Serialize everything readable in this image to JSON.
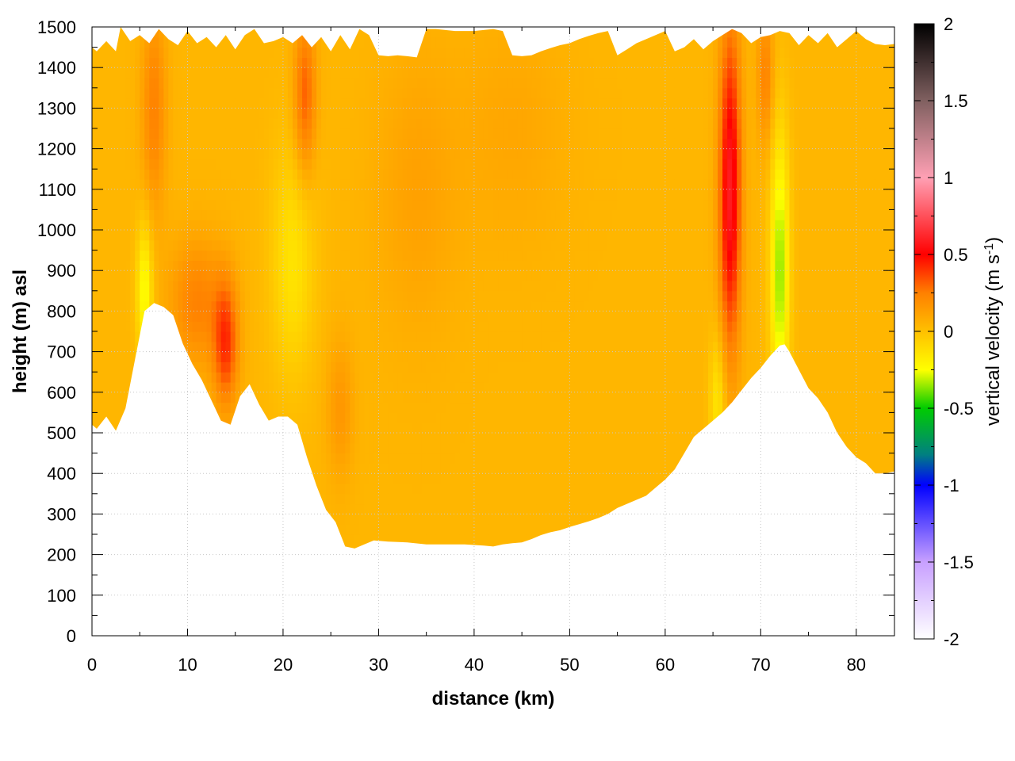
{
  "chart_data": {
    "type": "heatmap",
    "title": "",
    "xlabel": "distance (km)",
    "ylabel": "height (m) asl",
    "xlim": [
      0,
      84
    ],
    "ylim": [
      0,
      1500
    ],
    "x_ticks": [
      0,
      10,
      20,
      30,
      40,
      50,
      60,
      70,
      80
    ],
    "y_ticks": [
      0,
      100,
      200,
      300,
      400,
      500,
      600,
      700,
      800,
      900,
      1000,
      1100,
      1200,
      1300,
      1400,
      1500
    ],
    "grid": true,
    "colorbar": {
      "label_main": "vertical velocity (m s",
      "label_sup": "-1",
      "label_end": ")",
      "range": [
        -2,
        2
      ],
      "ticks": [
        "2",
        "1.5",
        "1",
        "0.5",
        "0",
        "-0.5",
        "-1",
        "-1.5",
        "-2"
      ],
      "stops": [
        {
          "value": -2.0,
          "color": "#ffffff"
        },
        {
          "value": -1.5,
          "color": "#c8a0ff"
        },
        {
          "value": -1.0,
          "color": "#0000ff"
        },
        {
          "value": -0.8,
          "color": "#008080"
        },
        {
          "value": -0.5,
          "color": "#00cc00"
        },
        {
          "value": -0.25,
          "color": "#ffff00"
        },
        {
          "value": 0.0,
          "color": "#ffc000"
        },
        {
          "value": 0.25,
          "color": "#ff8000"
        },
        {
          "value": 0.5,
          "color": "#ff0000"
        },
        {
          "value": 1.0,
          "color": "#ffa0b4"
        },
        {
          "value": 1.5,
          "color": "#806060"
        },
        {
          "value": 2.0,
          "color": "#000000"
        }
      ]
    },
    "terrain": {
      "x": [
        0,
        0.5,
        1.5,
        2.5,
        3.5,
        4.5,
        5.5,
        6.5,
        7.5,
        8.5,
        9.5,
        10.5,
        11.5,
        12.5,
        13.5,
        14.5,
        15.5,
        16.5,
        17.5,
        18.5,
        19.5,
        20.5,
        21.5,
        22.5,
        23.5,
        24.5,
        25.5,
        26.5,
        27.5,
        28.5,
        29.5,
        31,
        33,
        35,
        37,
        39,
        41,
        42,
        43,
        44,
        45,
        46,
        47,
        48,
        49,
        50,
        51,
        52,
        53,
        54,
        55,
        56,
        57,
        58,
        59,
        60,
        61,
        62,
        63,
        64,
        65,
        66,
        67,
        68,
        69,
        70,
        71,
        72,
        72.5,
        73,
        74,
        75,
        76,
        77,
        78,
        79,
        80,
        81,
        82,
        83,
        84
      ],
      "y": [
        520,
        510,
        540,
        505,
        560,
        680,
        800,
        820,
        810,
        790,
        720,
        670,
        630,
        580,
        530,
        520,
        590,
        620,
        570,
        530,
        540,
        540,
        520,
        440,
        370,
        310,
        280,
        220,
        215,
        225,
        235,
        232,
        230,
        225,
        225,
        225,
        222,
        220,
        225,
        228,
        230,
        238,
        248,
        255,
        260,
        268,
        275,
        282,
        290,
        300,
        315,
        325,
        335,
        345,
        365,
        385,
        410,
        450,
        490,
        510,
        530,
        550,
        575,
        605,
        635,
        660,
        690,
        715,
        718,
        700,
        655,
        610,
        585,
        550,
        500,
        465,
        440,
        425,
        400,
        400,
        405
      ],
      "note": ""
    },
    "top_boundary": {
      "x": [
        0,
        0.5,
        1.5,
        2.5,
        3,
        4,
        5,
        6,
        7,
        8,
        9,
        10,
        11,
        12,
        13,
        14,
        15,
        16,
        17,
        18,
        19,
        20,
        21,
        22,
        23,
        24,
        25,
        26,
        27,
        28,
        29,
        30,
        31,
        32,
        33,
        34,
        35,
        36,
        38,
        40,
        42,
        43,
        44,
        45,
        46,
        47,
        48,
        49,
        50,
        51,
        52,
        53,
        54,
        55,
        56,
        57,
        58,
        59,
        60,
        61,
        62,
        63,
        64,
        65,
        66,
        67,
        68,
        69,
        70,
        71,
        72,
        73,
        74,
        75,
        76,
        77,
        78,
        79,
        80,
        81,
        82,
        83,
        84
      ],
      "y": [
        1450,
        1440,
        1465,
        1440,
        1500,
        1465,
        1480,
        1460,
        1495,
        1470,
        1455,
        1490,
        1460,
        1475,
        1450,
        1480,
        1445,
        1480,
        1495,
        1460,
        1465,
        1475,
        1460,
        1480,
        1450,
        1475,
        1440,
        1480,
        1445,
        1495,
        1480,
        1430,
        1428,
        1430,
        1428,
        1425,
        1495,
        1495,
        1490,
        1490,
        1495,
        1490,
        1430,
        1428,
        1430,
        1440,
        1448,
        1455,
        1460,
        1470,
        1478,
        1485,
        1490,
        1430,
        1445,
        1460,
        1470,
        1480,
        1490,
        1440,
        1450,
        1470,
        1445,
        1465,
        1480,
        1495,
        1485,
        1460,
        1475,
        1480,
        1490,
        1485,
        1455,
        1480,
        1460,
        1485,
        1450,
        1470,
        1490,
        1470,
        1458,
        1455,
        1458
      ]
    },
    "features": [
      {
        "x": 6.5,
        "y": 1300,
        "sx": 0.9,
        "sy": 180,
        "value": 0.2
      },
      {
        "x": 5.5,
        "y": 850,
        "sx": 0.6,
        "sy": 120,
        "value": -0.3
      },
      {
        "x": 11,
        "y": 820,
        "sx": 2.0,
        "sy": 110,
        "value": 0.2
      },
      {
        "x": 14,
        "y": 720,
        "sx": 0.9,
        "sy": 110,
        "value": 0.35
      },
      {
        "x": 21,
        "y": 920,
        "sx": 1.6,
        "sy": 200,
        "value": -0.18
      },
      {
        "x": 22.3,
        "y": 1330,
        "sx": 0.8,
        "sy": 140,
        "value": 0.28
      },
      {
        "x": 26,
        "y": 560,
        "sx": 1.0,
        "sy": 120,
        "value": 0.12
      },
      {
        "x": 34,
        "y": 1100,
        "sx": 3.0,
        "sy": 250,
        "value": 0.08
      },
      {
        "x": 44,
        "y": 1250,
        "sx": 4.0,
        "sy": 200,
        "value": 0.06
      },
      {
        "x": 66.8,
        "y": 1100,
        "sx": 0.8,
        "sy": 280,
        "value": 0.55
      },
      {
        "x": 72,
        "y": 900,
        "sx": 0.7,
        "sy": 240,
        "value": -0.4
      },
      {
        "x": 70.5,
        "y": 1380,
        "sx": 0.6,
        "sy": 120,
        "value": 0.2
      },
      {
        "x": 65.5,
        "y": 580,
        "sx": 0.6,
        "sy": 120,
        "value": -0.2
      }
    ]
  }
}
